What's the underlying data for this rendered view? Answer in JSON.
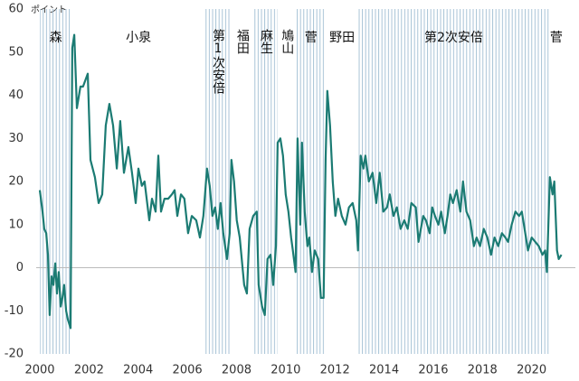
{
  "chart_data": {
    "type": "line",
    "y_label": "ポイント",
    "color": "#1b7b73",
    "xlim": [
      2000,
      2021.3
    ],
    "ylim": [
      -20,
      60
    ],
    "xticks": [
      2000,
      2002,
      2004,
      2006,
      2008,
      2010,
      2012,
      2014,
      2016,
      2018,
      2020
    ],
    "yticks": [
      -20,
      -10,
      0,
      10,
      20,
      30,
      40,
      50,
      60
    ],
    "periods": [
      {
        "label": "森",
        "start": 2000,
        "end": 2001.3,
        "shaded": true,
        "vertical": false
      },
      {
        "label": "小泉",
        "start": 2001.3,
        "end": 2006.73,
        "shaded": false,
        "vertical": false
      },
      {
        "label": "第1次安倍",
        "start": 2006.73,
        "end": 2007.76,
        "shaded": true,
        "vertical": true
      },
      {
        "label": "福田",
        "start": 2007.76,
        "end": 2008.71,
        "shaded": false,
        "vertical": true
      },
      {
        "label": "麻生",
        "start": 2008.71,
        "end": 2009.67,
        "shaded": true,
        "vertical": true
      },
      {
        "label": "鳩山",
        "start": 2009.67,
        "end": 2010.43,
        "shaded": false,
        "vertical": true
      },
      {
        "label": "菅",
        "start": 2010.43,
        "end": 2011.62,
        "shaded": true,
        "vertical": false
      },
      {
        "label": "野田",
        "start": 2011.62,
        "end": 2012.96,
        "shaded": false,
        "vertical": false
      },
      {
        "label": "第2次安倍",
        "start": 2012.96,
        "end": 2020.7,
        "shaded": true,
        "vertical": false
      },
      {
        "label": "菅",
        "start": 2020.7,
        "end": 2021.3,
        "shaded": false,
        "vertical": false
      }
    ],
    "x": [
      2000.0,
      2000.11,
      2000.18,
      2000.26,
      2000.33,
      2000.4,
      2000.48,
      2000.55,
      2000.63,
      2000.7,
      2000.77,
      2000.85,
      2000.92,
      2000.99,
      2001.07,
      2001.14,
      2001.25,
      2001.32,
      2001.4,
      2001.51,
      2001.65,
      2001.76,
      2001.95,
      2002.06,
      2002.24,
      2002.39,
      2002.54,
      2002.68,
      2002.83,
      2002.98,
      2003.13,
      2003.27,
      2003.42,
      2003.6,
      2003.75,
      2003.9,
      2004.01,
      2004.15,
      2004.26,
      2004.45,
      2004.56,
      2004.71,
      2004.82,
      2004.93,
      2005.07,
      2005.22,
      2005.37,
      2005.48,
      2005.59,
      2005.74,
      2005.88,
      2006.03,
      2006.18,
      2006.36,
      2006.51,
      2006.65,
      2006.8,
      2006.91,
      2007.02,
      2007.13,
      2007.24,
      2007.35,
      2007.46,
      2007.61,
      2007.72,
      2007.79,
      2007.9,
      2008.01,
      2008.13,
      2008.31,
      2008.42,
      2008.53,
      2008.68,
      2008.82,
      2008.9,
      2009.04,
      2009.15,
      2009.26,
      2009.38,
      2009.49,
      2009.6,
      2009.67,
      2009.78,
      2009.89,
      2010.0,
      2010.11,
      2010.22,
      2010.29,
      2010.4,
      2010.48,
      2010.59,
      2010.66,
      2010.77,
      2010.88,
      2010.96,
      2011.07,
      2011.18,
      2011.32,
      2011.43,
      2011.54,
      2011.62,
      2011.69,
      2011.8,
      2011.91,
      2012.02,
      2012.13,
      2012.28,
      2012.43,
      2012.57,
      2012.72,
      2012.87,
      2012.94,
      2013.05,
      2013.16,
      2013.24,
      2013.38,
      2013.53,
      2013.68,
      2013.82,
      2013.97,
      2014.12,
      2014.23,
      2014.38,
      2014.52,
      2014.67,
      2014.82,
      2014.96,
      2015.11,
      2015.29,
      2015.4,
      2015.59,
      2015.7,
      2015.85,
      2015.96,
      2016.07,
      2016.21,
      2016.32,
      2016.47,
      2016.58,
      2016.69,
      2016.8,
      2016.95,
      2017.1,
      2017.21,
      2017.35,
      2017.5,
      2017.65,
      2017.76,
      2017.9,
      2018.05,
      2018.2,
      2018.35,
      2018.49,
      2018.64,
      2018.79,
      2018.93,
      2019.04,
      2019.19,
      2019.34,
      2019.49,
      2019.6,
      2019.74,
      2019.85,
      2020.0,
      2020.15,
      2020.29,
      2020.44,
      2020.55,
      2020.62,
      2020.74,
      2020.85,
      2020.92,
      2021.03,
      2021.1,
      2021.21
    ],
    "values": [
      18,
      13,
      9,
      8,
      3,
      -11,
      -2,
      -4,
      1,
      -6,
      -1,
      -9,
      -7,
      -4,
      -10,
      -12,
      -14,
      51,
      54,
      37,
      42,
      42,
      45,
      25,
      21,
      15,
      17,
      33,
      38,
      33,
      23,
      34,
      22,
      28,
      22,
      15,
      23,
      19,
      20,
      11,
      16,
      13,
      26,
      13,
      16,
      16,
      17,
      18,
      12,
      17,
      16,
      8,
      12,
      11,
      7,
      12,
      23,
      19,
      12,
      14,
      9,
      15,
      8,
      2,
      8,
      25,
      20,
      11,
      7,
      -4,
      -6,
      9,
      12,
      13,
      -4,
      -9,
      -11,
      2,
      3,
      -4,
      5,
      29,
      30,
      26,
      17,
      13,
      7,
      4,
      -1,
      30,
      10,
      29,
      13,
      5,
      7,
      -1,
      4,
      2,
      -7,
      -7,
      25,
      41,
      33,
      20,
      12,
      16,
      12,
      10,
      14,
      15,
      11,
      4,
      26,
      23,
      26,
      20,
      22,
      15,
      22,
      13,
      14,
      17,
      12,
      14,
      9,
      11,
      9,
      15,
      14,
      6,
      12,
      11,
      8,
      14,
      12,
      10,
      13,
      8,
      12,
      17,
      15,
      18,
      13,
      20,
      13,
      11,
      5,
      7,
      5,
      9,
      7,
      3,
      7,
      5,
      8,
      7,
      6,
      10,
      13,
      12,
      13,
      8,
      4,
      7,
      6,
      5,
      3,
      4,
      -1,
      21,
      17,
      20,
      4,
      2,
      3
    ]
  }
}
